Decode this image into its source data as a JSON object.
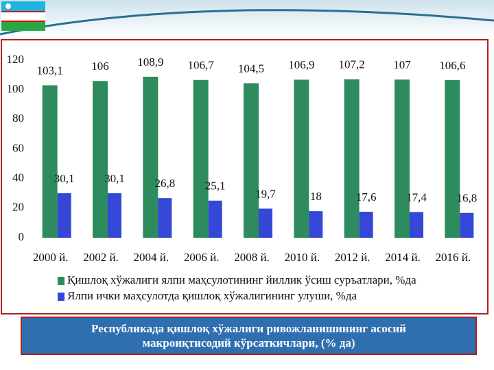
{
  "chart_data": {
    "type": "bar",
    "categories": [
      "2000 й.",
      "2002 й.",
      "2004 й.",
      "2006 й.",
      "2008 й.",
      "2010 й.",
      "2012 й.",
      "2014 й.",
      "2016 й."
    ],
    "series": [
      {
        "name": "Қишлоқ хўжалиги ялпи маҳсулотининг йиллик ўсиш суръатлари, %да",
        "color": "#2e8b5e",
        "values": [
          103.1,
          106,
          108.9,
          106.7,
          104.5,
          106.9,
          107.2,
          107,
          106.6
        ],
        "value_labels": [
          "103,1",
          "106",
          "108,9",
          "106,7",
          "104,5",
          "106,9",
          "107,2",
          "107",
          "106,6"
        ]
      },
      {
        "name": "Ялпи ички маҳсулотда қишлоқ хўжалигининг улуши, %да",
        "color": "#3447d6",
        "values": [
          30.1,
          30.1,
          26.8,
          25.1,
          19.7,
          18,
          17.6,
          17.4,
          16.8
        ],
        "value_labels": [
          "30,1",
          "30,1",
          "26,8",
          "25,1",
          "19,7",
          "18",
          "17,6",
          "17,4",
          "16,8"
        ]
      }
    ],
    "ylim": [
      0,
      120
    ],
    "yticks": [
      0,
      20,
      40,
      60,
      80,
      100,
      120
    ],
    "title": "Республикада қишлоқ хўжалиги ривожланишининг асосий макроиқтисодий кўрсаткичлари, (% да)"
  }
}
